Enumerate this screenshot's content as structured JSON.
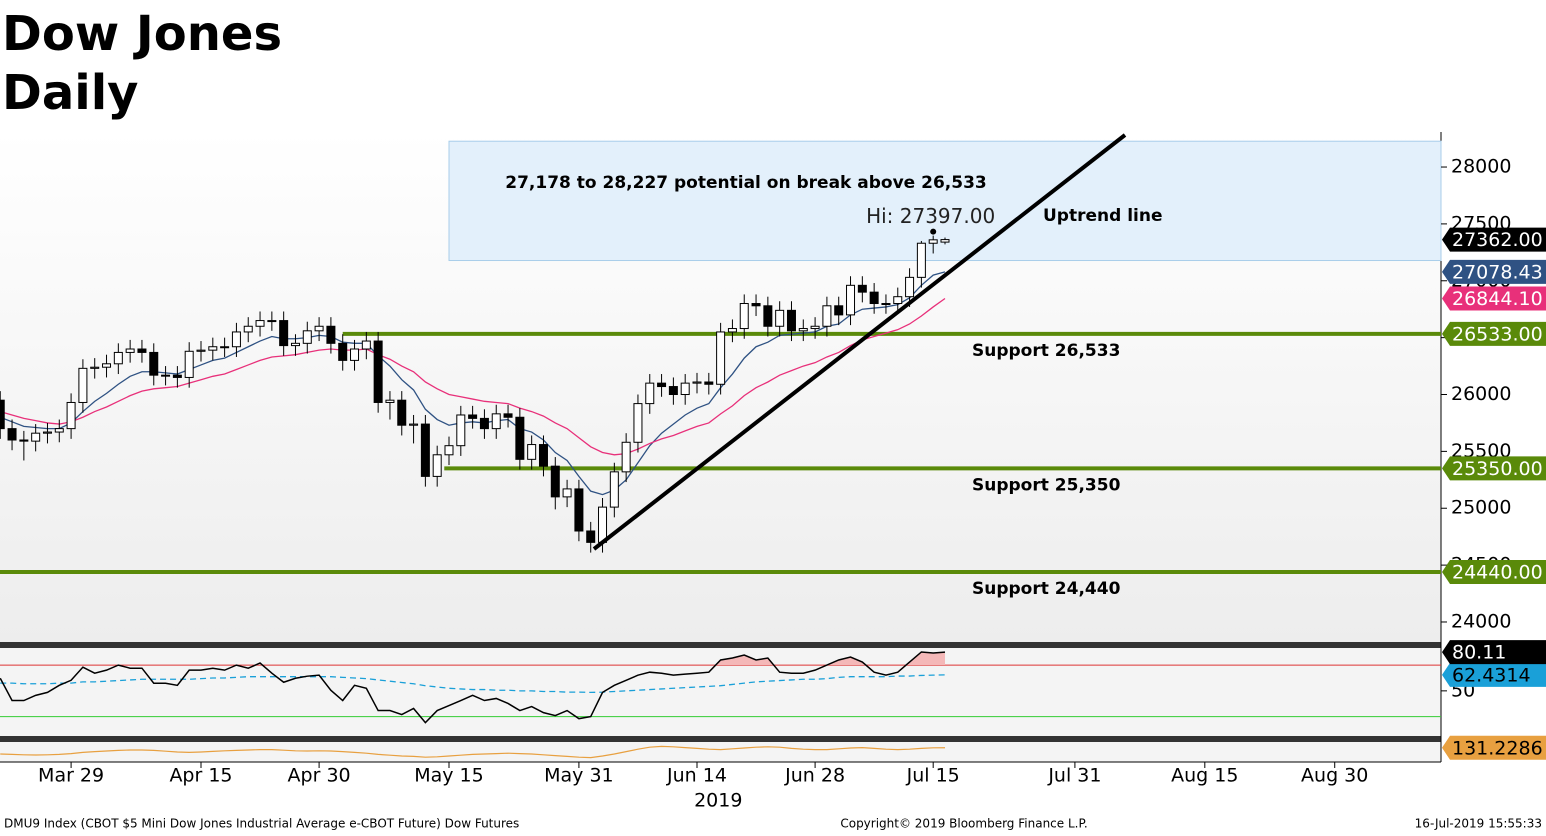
{
  "chart_data": {
    "type": "candlestick",
    "title": [
      "Dow Jones",
      "Daily"
    ],
    "xlim": [
      -0.02,
      122
    ],
    "xticks": [
      {
        "value": 6,
        "label": "Mar 29"
      },
      {
        "value": 17,
        "label": "Apr 15"
      },
      {
        "value": 27,
        "label": "Apr 30"
      },
      {
        "value": 38,
        "label": "May 15"
      },
      {
        "value": 49,
        "label": "May 31"
      },
      {
        "value": 59,
        "label": "Jun 14"
      },
      {
        "value": 69,
        "label": "Jun 28"
      },
      {
        "value": 79,
        "label": "Jul 15"
      },
      {
        "value": 91,
        "label": "Jul 31"
      },
      {
        "value": 102,
        "label": "Aug 15"
      },
      {
        "value": 113,
        "label": "Aug 30"
      }
    ],
    "year_label": "2019",
    "ylim": [
      23824,
      28308
    ],
    "yticks": [
      24000,
      24500,
      25000,
      25500,
      26000,
      26500,
      27000,
      27500,
      28000
    ],
    "open": [
      25950,
      25700,
      25600,
      25590,
      25660,
      25670,
      25700,
      25930,
      26230,
      26240,
      26270,
      26370,
      26400,
      26370,
      26170,
      26170,
      26150,
      26380,
      26390,
      26420,
      26420,
      26550,
      26600,
      26650,
      26650,
      26430,
      26450,
      26560,
      26600,
      26450,
      26300,
      26400,
      26470,
      25930,
      25950,
      25730,
      25740,
      25280,
      25470,
      25550,
      25820,
      25790,
      25700,
      25830,
      25800,
      25430,
      25560,
      25370,
      25100,
      25170,
      24800,
      24700,
      25010,
      25320,
      25580,
      25920,
      26100,
      26070,
      26000,
      26100,
      26110,
      26090,
      26550,
      26580,
      26800,
      26780,
      26600,
      26740,
      26560,
      26580,
      26600,
      26780,
      26700,
      26960,
      26900,
      26800,
      26800,
      26860,
      27030,
      27330,
      27340
    ],
    "high": [
      26030,
      25780,
      25680,
      25740,
      25750,
      25780,
      26010,
      26310,
      26320,
      26350,
      26450,
      26480,
      26480,
      26450,
      26250,
      26250,
      26460,
      26470,
      26500,
      26500,
      26630,
      26680,
      26730,
      26730,
      26730,
      26530,
      26640,
      26680,
      26680,
      26530,
      26480,
      26550,
      26550,
      26030,
      26030,
      25820,
      25820,
      25550,
      25630,
      25900,
      25900,
      25870,
      25910,
      25910,
      25880,
      25640,
      25640,
      25450,
      25250,
      25250,
      24880,
      25090,
      25400,
      25660,
      26000,
      26180,
      26180,
      26150,
      26180,
      26190,
      26190,
      26630,
      26660,
      26880,
      26880,
      26860,
      26820,
      26820,
      26660,
      26680,
      26860,
      26860,
      27040,
      27040,
      26980,
      26880,
      26940,
      27110,
      27350,
      27397,
      27380
    ],
    "low": [
      25610,
      25510,
      25420,
      25500,
      25570,
      25580,
      25610,
      25840,
      26140,
      26150,
      26180,
      26280,
      26280,
      26080,
      26080,
      26060,
      26060,
      26290,
      26300,
      26330,
      26330,
      26460,
      26510,
      26560,
      26340,
      26340,
      26360,
      26470,
      26360,
      26210,
      26210,
      26310,
      25840,
      25780,
      25640,
      25570,
      25190,
      25190,
      25380,
      25460,
      25700,
      25610,
      25610,
      25710,
      25340,
      25340,
      25280,
      24990,
      25010,
      24710,
      24610,
      24610,
      24920,
      25230,
      25490,
      25830,
      25980,
      25910,
      25910,
      26010,
      26000,
      26000,
      26460,
      26490,
      26690,
      26510,
      26510,
      26470,
      26470,
      26490,
      26510,
      26610,
      26610,
      26810,
      26710,
      26710,
      26710,
      26770,
      26940,
      27240,
      27320
    ],
    "close": [
      25700,
      25600,
      25590,
      25660,
      25670,
      25700,
      25930,
      26230,
      26240,
      26270,
      26370,
      26400,
      26370,
      26170,
      26170,
      26150,
      26380,
      26390,
      26420,
      26420,
      26550,
      26600,
      26650,
      26650,
      26430,
      26450,
      26560,
      26600,
      26450,
      26300,
      26400,
      26470,
      25930,
      25950,
      25730,
      25740,
      25280,
      25470,
      25550,
      25820,
      25790,
      25700,
      25830,
      25800,
      25430,
      25560,
      25370,
      25100,
      25170,
      24800,
      24700,
      25010,
      25320,
      25580,
      25920,
      26100,
      26070,
      26000,
      26100,
      26110,
      26090,
      26550,
      26580,
      26800,
      26780,
      26600,
      26740,
      26560,
      26580,
      26600,
      26780,
      26700,
      26960,
      26900,
      26800,
      26800,
      26860,
      27030,
      27330,
      27360,
      27362
    ],
    "last_label": "27362.00",
    "high_label": "Hi: 27397.00",
    "high_index": 79,
    "moving_averages": [
      {
        "color": "#2f5283",
        "value_label": "27078.43",
        "values": [
          25800,
          25760,
          25720,
          25710,
          25700,
          25700,
          25750,
          25850,
          25940,
          26010,
          26090,
          26160,
          26200,
          26200,
          26190,
          26180,
          26220,
          26260,
          26300,
          26320,
          26370,
          26420,
          26470,
          26510,
          26490,
          26490,
          26500,
          26520,
          26510,
          26460,
          26450,
          26450,
          26340,
          26250,
          26130,
          26040,
          25870,
          25780,
          25730,
          25750,
          25760,
          25750,
          25770,
          25780,
          25700,
          25670,
          25600,
          25490,
          25420,
          25280,
          25150,
          25120,
          25160,
          25250,
          25400,
          25550,
          25660,
          25740,
          25820,
          25880,
          25920,
          26060,
          26180,
          26320,
          26420,
          26460,
          26520,
          26530,
          26540,
          26550,
          26600,
          26620,
          26700,
          26750,
          26760,
          26770,
          26790,
          26850,
          26960,
          27050,
          27078.43
        ]
      },
      {
        "color": "#e8307a",
        "value_label": "26844.10",
        "values": [
          25850,
          25820,
          25790,
          25770,
          25750,
          25740,
          25760,
          25800,
          25850,
          25890,
          25940,
          25990,
          26030,
          26050,
          26060,
          26070,
          26100,
          26130,
          26160,
          26180,
          26220,
          26260,
          26300,
          26330,
          26340,
          26350,
          26370,
          26390,
          26400,
          26390,
          26390,
          26400,
          26350,
          26310,
          26250,
          26200,
          26110,
          26050,
          26000,
          25980,
          25960,
          25940,
          25930,
          25920,
          25880,
          25850,
          25810,
          25750,
          25700,
          25620,
          25540,
          25490,
          25470,
          25480,
          25520,
          25570,
          25610,
          25640,
          25680,
          25720,
          25750,
          25830,
          25900,
          25990,
          26060,
          26110,
          26170,
          26210,
          26250,
          26280,
          26330,
          26370,
          26430,
          26480,
          26510,
          26540,
          26570,
          26620,
          26690,
          26770,
          26844.1
        ]
      }
    ],
    "levels": [
      {
        "value": 26533,
        "start": 29,
        "label": "Support 26,533",
        "tag": "26533.00"
      },
      {
        "value": 25350,
        "start": 37.6,
        "label": "Support 25,350",
        "tag": "25350.00"
      },
      {
        "value": 24440,
        "start": -0.02,
        "label": "Support 24,440",
        "tag": "24440.00"
      }
    ],
    "level_color": "#5a8a0a",
    "band": {
      "from": 27178,
      "to": 28227,
      "start": 38,
      "label": "27,178 to 28,227 potential on break above 26,533"
    },
    "trend_label": "Uptrend line",
    "rsi": {
      "color": "#000000",
      "ylim": [
        15.7,
        83.3
      ],
      "yticks": [
        50
      ],
      "ref_lines": [
        70,
        30
      ],
      "value_label": "80.11",
      "values": [
        59.8,
        42.5,
        42.5,
        46.5,
        48.8,
        54.3,
        58.2,
        68.4,
        63.7,
        66.1,
        70,
        67.6,
        67.6,
        55.9,
        55.9,
        54.3,
        66.1,
        66.1,
        67.6,
        66.1,
        70,
        67.6,
        71.6,
        63.7,
        56.7,
        59.8,
        61.4,
        62.2,
        50.4,
        42.5,
        54.3,
        52,
        34.7,
        34.7,
        31.6,
        36.3,
        25.3,
        34.7,
        38.6,
        42.5,
        46.5,
        42.5,
        44.1,
        40.2,
        34.7,
        37.8,
        33.1,
        30.8,
        34.7,
        28.4,
        30,
        48.8,
        54.3,
        58.2,
        62.2,
        64.5,
        63.7,
        62.2,
        63,
        63.7,
        64.5,
        74,
        75.5,
        77.8,
        74,
        75.5,
        64.5,
        63.7,
        63.7,
        66.1,
        70,
        74,
        76.3,
        72.4,
        64.5,
        62.2,
        64.5,
        72.4,
        80.2,
        79.4,
        80.11
      ],
      "ma": {
        "color": "#1aa0d8",
        "value_label": "62.4314",
        "values": [
          56,
          56,
          55.5,
          55.5,
          55.5,
          56,
          56,
          57,
          57,
          57.5,
          58,
          58.5,
          59,
          59,
          59,
          59,
          59,
          59.5,
          60,
          60,
          60.5,
          61,
          61,
          61,
          61,
          61,
          61,
          61,
          61,
          60.5,
          60,
          59.5,
          58.5,
          57.5,
          56.5,
          55.5,
          54,
          53,
          52,
          51.5,
          51,
          51,
          50.5,
          50.5,
          50,
          50,
          49.5,
          49.5,
          49,
          49,
          48.8,
          49,
          49.5,
          50,
          50.5,
          51,
          51.5,
          52,
          52.5,
          53,
          53.5,
          54,
          55,
          56,
          57,
          57.5,
          58,
          58.5,
          59,
          59,
          59.5,
          60.5,
          61,
          61,
          61,
          61,
          61.5,
          61.5,
          62,
          62.2,
          62.4314
        ]
      }
    },
    "oscillator": {
      "color": "#e8a040",
      "ylim": [
        60,
        160
      ],
      "value_label": "131.2286",
      "values": [
        100,
        98,
        96,
        95,
        96,
        98,
        102,
        108,
        112,
        115,
        118,
        120,
        120,
        118,
        114,
        110,
        108,
        110,
        113,
        116,
        118,
        120,
        122,
        122,
        119,
        116,
        115,
        116,
        115,
        112,
        108,
        104,
        98,
        94,
        90,
        88,
        84,
        86,
        90,
        94,
        98,
        100,
        102,
        104,
        102,
        100,
        96,
        92,
        88,
        84,
        82,
        90,
        100,
        112,
        124,
        134,
        138,
        136,
        132,
        128,
        124,
        122,
        126,
        130,
        134,
        136,
        134,
        128,
        124,
        122,
        122,
        126,
        130,
        132,
        128,
        124,
        122,
        124,
        128,
        131,
        131.2286
      ]
    }
  },
  "footer": {
    "left": "DMU9 Index (CBOT $5 Mini Dow Jones Industrial Average e-CBOT Future) Dow Futures",
    "center": "Copyright© 2019 Bloomberg Finance L.P.",
    "right": "16-Jul-2019 15:55:33"
  }
}
